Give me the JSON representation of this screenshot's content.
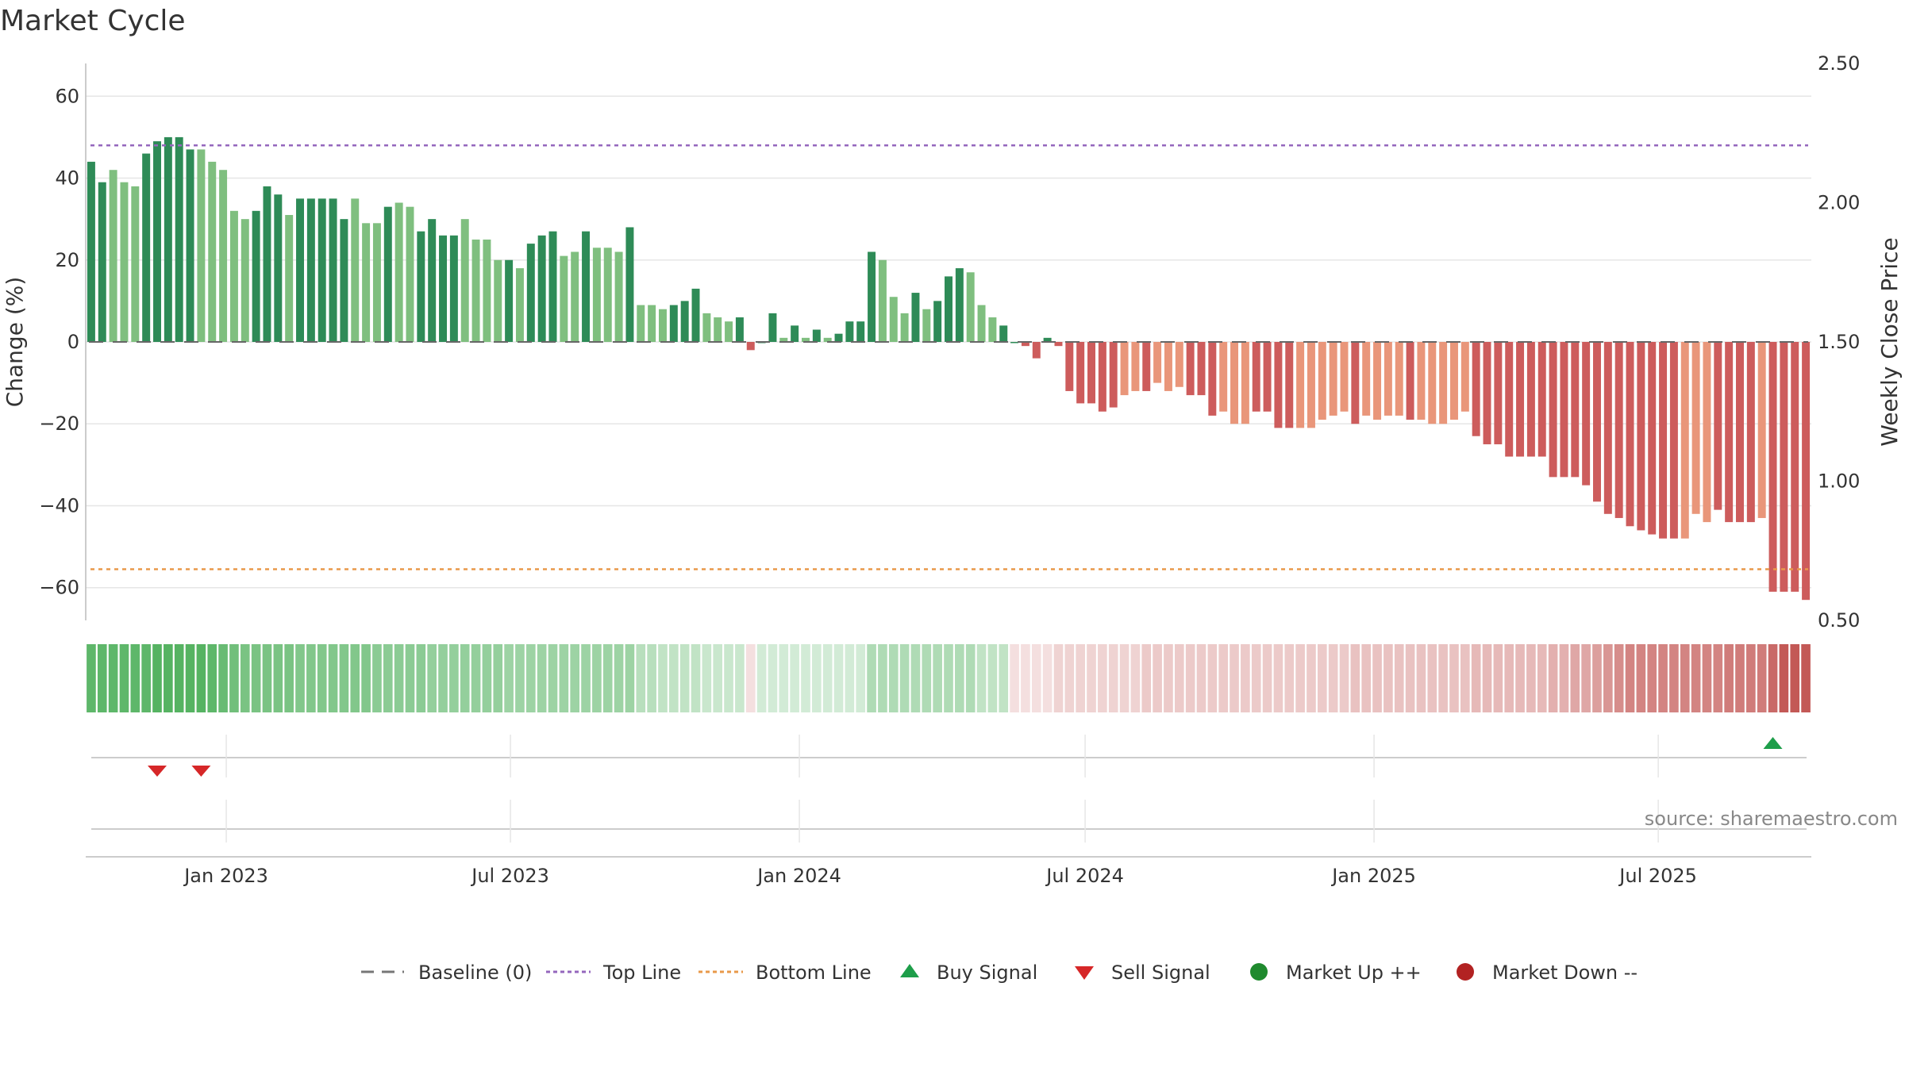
{
  "title": "Market Cycle",
  "source_label": "source: sharemaestro.com",
  "legend": [
    {
      "key": "baseline",
      "label": "Baseline (0)",
      "icon": "dash-line-icon",
      "color": "#777777"
    },
    {
      "key": "top",
      "label": "Top Line",
      "icon": "dotted-line-icon",
      "color": "#9467bd"
    },
    {
      "key": "bottom",
      "label": "Bottom Line",
      "icon": "dotted-line-icon",
      "color": "#e8994a"
    },
    {
      "key": "buy",
      "label": "Buy Signal",
      "icon": "triangle-up-icon",
      "color": "#1e9e4a"
    },
    {
      "key": "sell",
      "label": "Sell Signal",
      "icon": "triangle-down-icon",
      "color": "#d62728"
    },
    {
      "key": "up",
      "label": "Market Up ++",
      "icon": "circle-icon",
      "color": "#1f8a2e"
    },
    {
      "key": "down",
      "label": "Market Down --",
      "icon": "circle-icon",
      "color": "#b22222"
    }
  ],
  "colors": {
    "pos_dark": "#2e8b57",
    "pos_light": "#7fbf7f",
    "neg_dark": "#cd5c5c",
    "neg_light": "#e9967a",
    "grid": "#e6e6e6",
    "heat_green": "#4daf5a",
    "heat_red": "#c0504d"
  },
  "chart_data": {
    "type": "bar",
    "x_start": "2022-10-07",
    "x_step_days": 7,
    "x_ticks": [
      "Jan 2023",
      "Jul 2023",
      "Jan 2024",
      "Jul 2024",
      "Jan 2025",
      "Jul 2025"
    ],
    "x_tick_dates": [
      "2023-01-01",
      "2023-07-01",
      "2024-01-01",
      "2024-07-01",
      "2025-01-01",
      "2025-07-01"
    ],
    "y_left": {
      "label": "Change (%)",
      "range": [
        -68,
        68
      ],
      "ticks": [
        60,
        40,
        20,
        0,
        -20,
        -40,
        -60
      ],
      "tick_labels": [
        "60",
        "40",
        "20",
        "0",
        "−20",
        "−40",
        "−60"
      ]
    },
    "y_right": {
      "label": "Weekly Close Price",
      "range": [
        0.5,
        2.5
      ],
      "ticks": [
        2.5,
        2.0,
        1.5,
        1.0,
        0.5
      ],
      "tick_labels": [
        "2.50",
        "2.00",
        "1.50",
        "1.00",
        "0.50"
      ]
    },
    "top_line": 48,
    "bottom_line": -55.5,
    "baseline": 0,
    "values": [
      44,
      39,
      42,
      39,
      38,
      46,
      49,
      50,
      50,
      47,
      47,
      44,
      42,
      32,
      30,
      32,
      38,
      36,
      31,
      35,
      35,
      35,
      35,
      30,
      35,
      29,
      29,
      33,
      34,
      33,
      27,
      30,
      26,
      26,
      30,
      25,
      25,
      20,
      20,
      18,
      24,
      26,
      27,
      21,
      22,
      27,
      23,
      23,
      22,
      28,
      9,
      9,
      8,
      9,
      10,
      13,
      7,
      6,
      5,
      6,
      -2,
      0,
      7,
      1,
      4,
      1,
      3,
      1,
      2,
      5,
      5,
      22,
      20,
      11,
      7,
      12,
      8,
      10,
      16,
      18,
      17,
      9,
      6,
      4,
      0,
      -1,
      -4,
      1,
      -1,
      -12,
      -15,
      -15,
      -17,
      -16,
      -13,
      -12,
      -12,
      -10,
      -12,
      -11,
      -13,
      -13,
      -18,
      -17,
      -20,
      -20,
      -17,
      -17,
      -21,
      -21,
      -21,
      -21,
      -19,
      -18,
      -17,
      -20,
      -18,
      -19,
      -18,
      -18,
      -19,
      -19,
      -20,
      -20,
      -19,
      -17,
      -23,
      -25,
      -25,
      -28,
      -28,
      -28,
      -28,
      -33,
      -33,
      -33,
      -35,
      -39,
      -42,
      -43,
      -45,
      -46,
      -47,
      -48,
      -48,
      -48,
      -42,
      -44,
      -41,
      -44,
      -44,
      -44,
      -43,
      -61,
      -61,
      -61,
      -63
    ],
    "light_indices": [
      2,
      3,
      4,
      10,
      11,
      12,
      13,
      14,
      18,
      24,
      25,
      26,
      28,
      29,
      34,
      35,
      36,
      37,
      39,
      43,
      44,
      46,
      47,
      48,
      50,
      51,
      52,
      56,
      57,
      58,
      63,
      65,
      67,
      72,
      73,
      74,
      76,
      80,
      81,
      82,
      94,
      95,
      97,
      98,
      99,
      103,
      104,
      105,
      110,
      111,
      112,
      113,
      114,
      116,
      117,
      118,
      119,
      121,
      122,
      123,
      124,
      125,
      145,
      146,
      147,
      152
    ],
    "heat_strip": [
      0.9,
      0.9,
      0.9,
      0.9,
      0.9,
      0.9,
      0.95,
      0.95,
      0.95,
      0.95,
      0.95,
      0.9,
      0.85,
      0.8,
      0.75,
      0.75,
      0.75,
      0.75,
      0.75,
      0.7,
      0.7,
      0.7,
      0.7,
      0.7,
      0.7,
      0.7,
      0.65,
      0.65,
      0.65,
      0.65,
      0.65,
      0.6,
      0.6,
      0.6,
      0.6,
      0.6,
      0.6,
      0.6,
      0.55,
      0.55,
      0.55,
      0.55,
      0.55,
      0.55,
      0.55,
      0.55,
      0.55,
      0.55,
      0.55,
      0.55,
      0.4,
      0.4,
      0.35,
      0.35,
      0.35,
      0.35,
      0.3,
      0.3,
      0.3,
      0.3,
      -0.15,
      0.25,
      0.25,
      0.25,
      0.25,
      0.25,
      0.25,
      0.25,
      0.25,
      0.25,
      0.25,
      0.45,
      0.45,
      0.45,
      0.45,
      0.45,
      0.45,
      0.45,
      0.45,
      0.45,
      0.45,
      0.35,
      0.35,
      0.35,
      -0.15,
      -0.15,
      -0.15,
      -0.15,
      -0.25,
      -0.25,
      -0.25,
      -0.25,
      -0.25,
      -0.25,
      -0.25,
      -0.25,
      -0.3,
      -0.3,
      -0.3,
      -0.3,
      -0.3,
      -0.3,
      -0.3,
      -0.3,
      -0.3,
      -0.3,
      -0.3,
      -0.3,
      -0.3,
      -0.3,
      -0.3,
      -0.3,
      -0.3,
      -0.3,
      -0.3,
      -0.35,
      -0.35,
      -0.35,
      -0.35,
      -0.35,
      -0.35,
      -0.35,
      -0.35,
      -0.35,
      -0.35,
      -0.35,
      -0.4,
      -0.4,
      -0.4,
      -0.4,
      -0.4,
      -0.4,
      -0.4,
      -0.45,
      -0.45,
      -0.5,
      -0.5,
      -0.55,
      -0.6,
      -0.65,
      -0.7,
      -0.7,
      -0.7,
      -0.7,
      -0.7,
      -0.7,
      -0.7,
      -0.7,
      -0.7,
      -0.75,
      -0.75,
      -0.75,
      -0.75,
      -0.85,
      -0.95,
      -0.95,
      -0.95
    ],
    "sell_signals": [
      6,
      10
    ],
    "buy_signals": [
      153
    ]
  }
}
